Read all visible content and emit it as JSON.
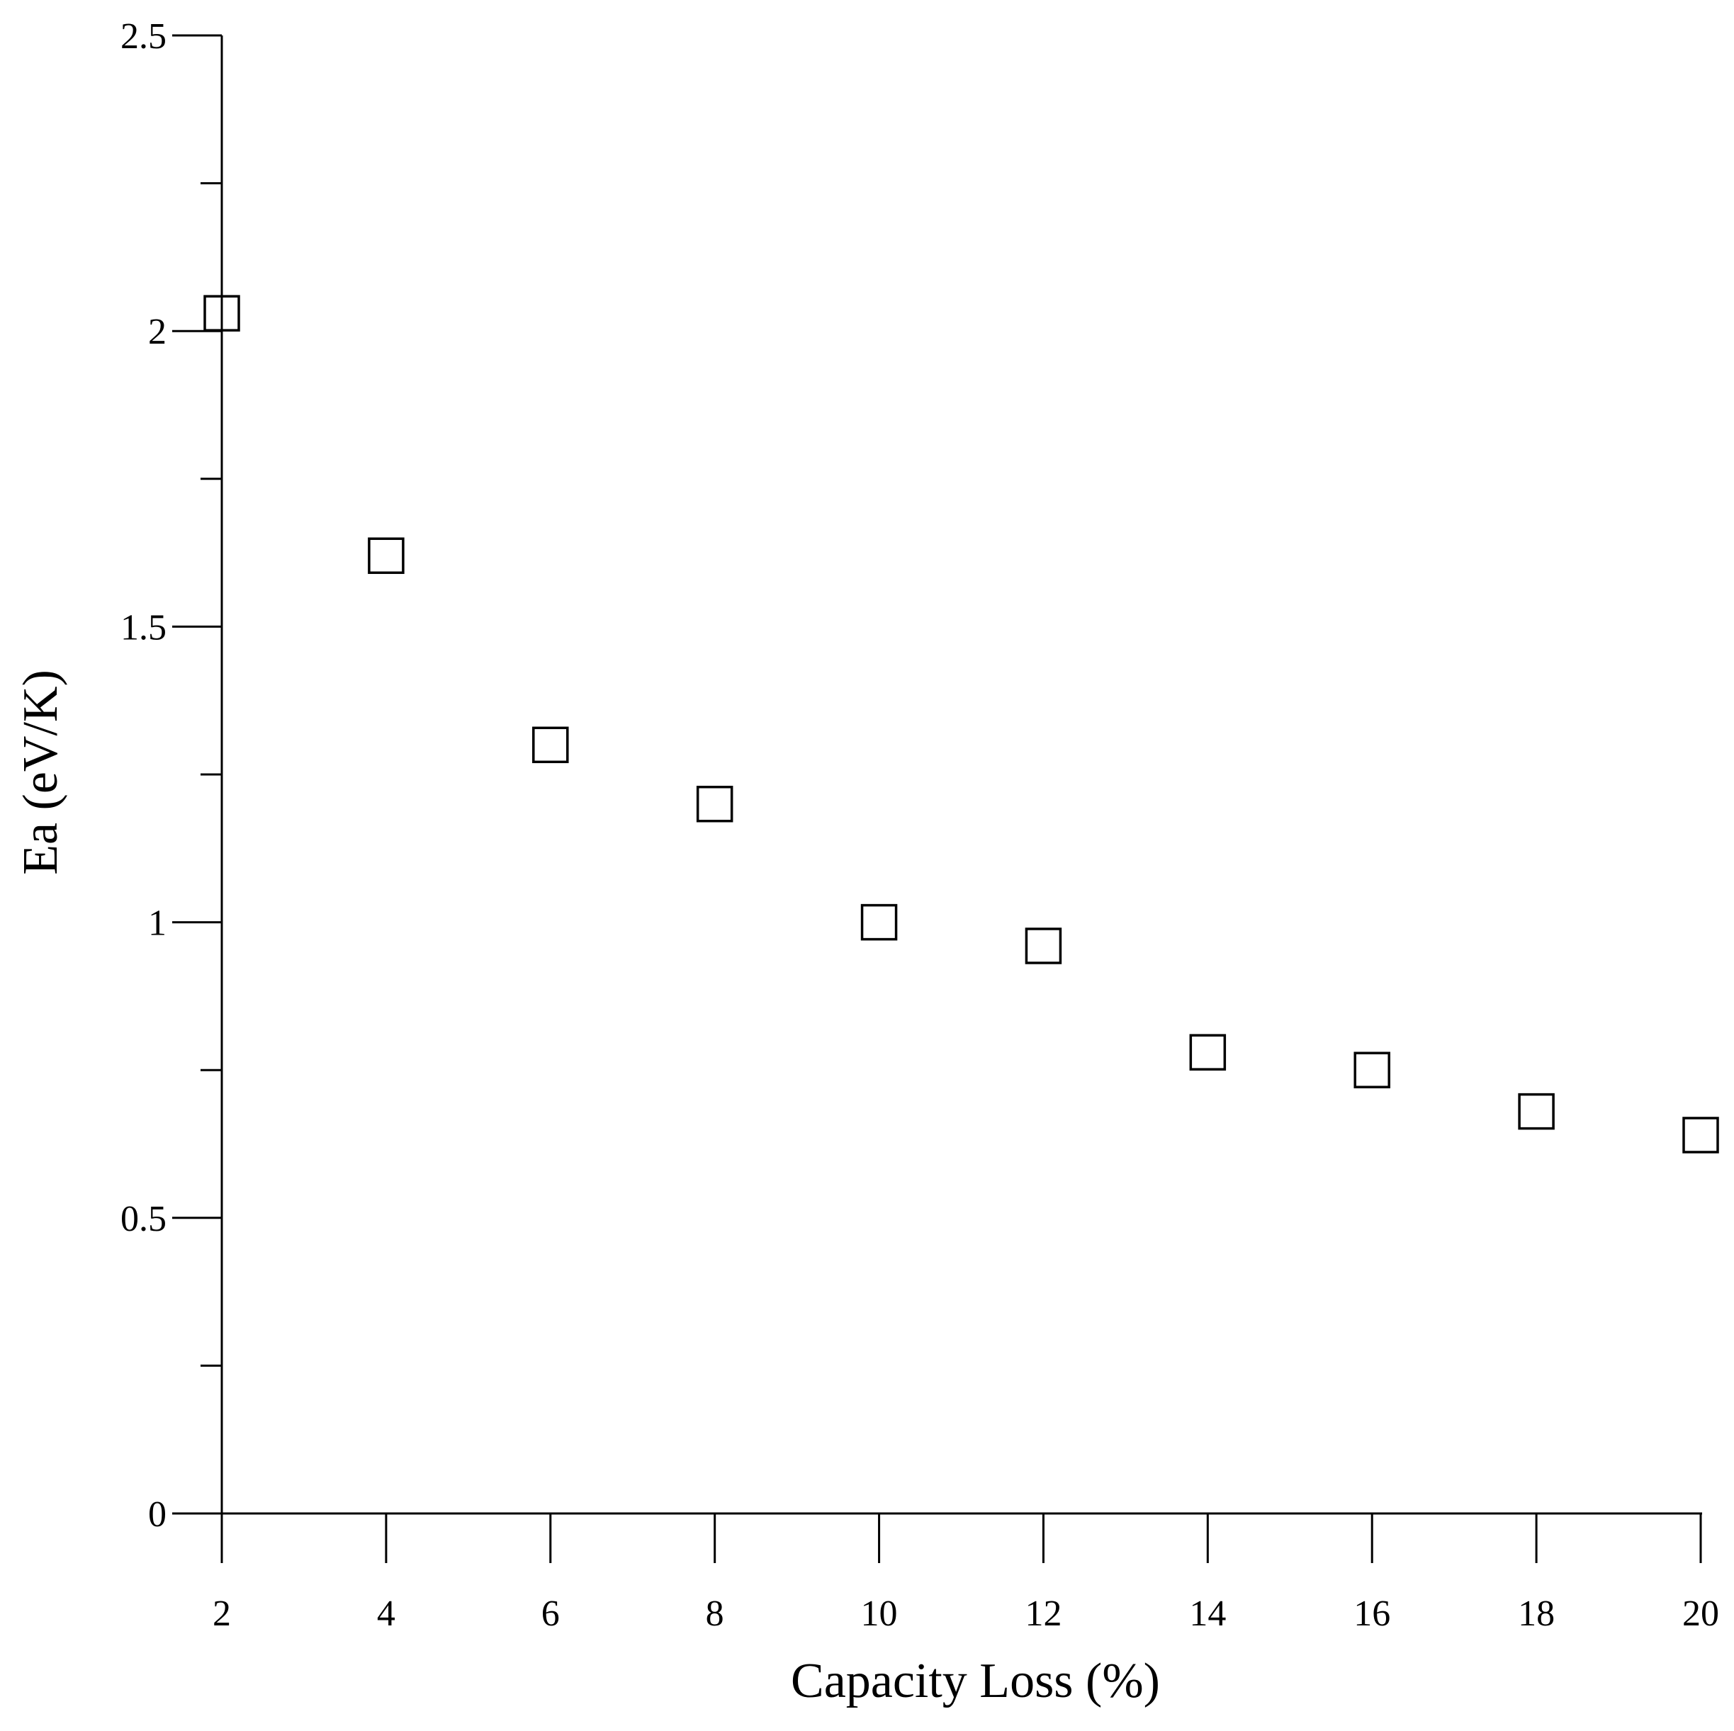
{
  "chart_data": {
    "type": "scatter",
    "title": "",
    "xlabel": "Capacity Loss (%)",
    "ylabel": "Ea (eV/K)",
    "xlim": [
      2,
      20
    ],
    "ylim": [
      0,
      2.5
    ],
    "x_ticks": [
      2,
      4,
      6,
      8,
      10,
      12,
      14,
      16,
      18,
      20
    ],
    "x_tick_labels": [
      "2",
      "4",
      "6",
      "8",
      "10",
      "12",
      "14",
      "16",
      "18",
      "20"
    ],
    "y_ticks": [
      0,
      0.5,
      1,
      1.5,
      2,
      2.5
    ],
    "y_tick_labels": [
      "0",
      "0.5",
      "1",
      "1.5",
      "2",
      "2.5"
    ],
    "y_minor_ticks": [
      0.25,
      0.75,
      1.25,
      1.75,
      2.25
    ],
    "grid": false,
    "marker": "open-square",
    "series": [
      {
        "x": [
          2,
          4,
          6,
          8,
          10,
          12,
          14,
          16,
          18,
          20
        ],
        "y": [
          2.03,
          1.62,
          1.3,
          1.2,
          1.0,
          0.96,
          0.78,
          0.75,
          0.68,
          0.64
        ]
      }
    ]
  }
}
